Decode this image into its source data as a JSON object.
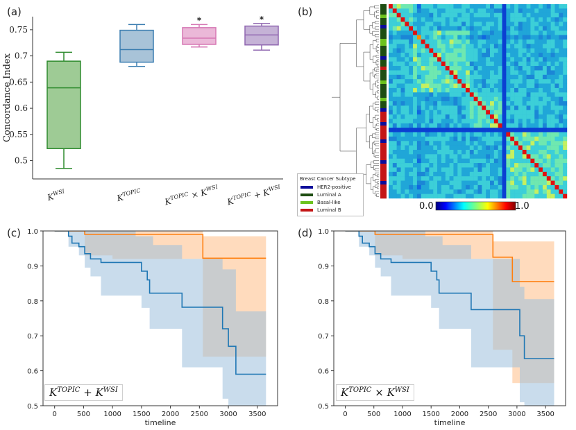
{
  "figure": {
    "panel_labels": [
      "(a)",
      "(b)",
      "(c)",
      "(d)"
    ]
  },
  "chart_data": [
    {
      "id": "a",
      "type": "boxplot",
      "title": "",
      "xlabel": "",
      "ylabel": "Concordance Index",
      "ylim": [
        0.465,
        0.775
      ],
      "yticks": [
        0.5,
        0.55,
        0.6,
        0.65,
        0.7,
        0.75
      ],
      "ytick_labels": [
        "0.5",
        "0.55",
        "0.6",
        "0.65",
        "0.7",
        "0.75"
      ],
      "grid": false,
      "series": [
        {
          "name": "K^WSI",
          "tex_base": "K",
          "tex_sup": "WSI",
          "tex_op": "",
          "tex_base2": "",
          "tex_sup2": "",
          "whisker_low": 0.485,
          "q1": 0.523,
          "median": 0.639,
          "q3": 0.69,
          "whisker_high": 0.707,
          "color": "#2e8b2e",
          "fill": "#9ecb95",
          "significant": false
        },
        {
          "name": "K^TOPIC",
          "tex_base": "K",
          "tex_sup": "TOPIC",
          "tex_op": "",
          "tex_base2": "",
          "tex_sup2": "",
          "whisker_low": 0.68,
          "q1": 0.688,
          "median": 0.712,
          "q3": 0.749,
          "whisker_high": 0.76,
          "color": "#3a7db0",
          "fill": "#a8c3d8",
          "significant": false
        },
        {
          "name": "K^TOPIC × K^WSI",
          "tex_base": "K",
          "tex_sup": "TOPIC",
          "tex_op": "×",
          "tex_base2": "K",
          "tex_sup2": "WSI",
          "whisker_low": 0.717,
          "q1": 0.722,
          "median": 0.734,
          "q3": 0.754,
          "whisker_high": 0.76,
          "color": "#d678b4",
          "fill": "#ebb8d8",
          "significant": true
        },
        {
          "name": "K^TOPIC + K^WSI",
          "tex_base": "K",
          "tex_sup": "TOPIC",
          "tex_op": "+",
          "tex_base2": "K",
          "tex_sup2": "WSI",
          "whisker_low": 0.711,
          "q1": 0.721,
          "median": 0.74,
          "q3": 0.757,
          "whisker_high": 0.762,
          "color": "#9067b0",
          "fill": "#c5b2d6",
          "significant": true
        }
      ],
      "significance_marker": "*"
    },
    {
      "id": "b",
      "type": "heatmap",
      "title": "",
      "colorbar": {
        "min_label": "0.0",
        "max_label": "1.0"
      },
      "legend": {
        "title": "Breast Cancer Subtype",
        "entries": [
          {
            "label": "HER2-positive",
            "color": "#0b0b9a"
          },
          {
            "label": "Luminal A",
            "color": "#1e4d12"
          },
          {
            "label": "Basal-like",
            "color": "#6cc21d"
          },
          {
            "label": "Luminal B",
            "color": "#c41616"
          }
        ]
      }
    },
    {
      "id": "c",
      "type": "line",
      "xlabel": "timeline",
      "ylabel": "",
      "xlim": [
        -200,
        3850
      ],
      "ylim": [
        0.5,
        1.0
      ],
      "xticks": [
        0,
        500,
        1000,
        1500,
        2000,
        2500,
        3000,
        3500
      ],
      "yticks": [
        0.5,
        0.6,
        0.7,
        0.8,
        0.9,
        1.0
      ],
      "ytick_labels": [
        "0.5",
        "0.6",
        "0.7",
        "0.8",
        "0.9",
        "1.0"
      ],
      "legend_text": {
        "base": "K",
        "sup": "TOPIC",
        "op": "+",
        "base2": "K",
        "sup2": "WSI"
      },
      "series": [
        {
          "name": "orange",
          "color": "#ff7f0e",
          "fill": "#ffbe86",
          "steps": [
            [
              0,
              1.0
            ],
            [
              520,
              1.0
            ],
            [
              520,
              0.99
            ],
            [
              2560,
              0.99
            ],
            [
              2560,
              0.922
            ],
            [
              3650,
              0.922
            ]
          ],
          "upper": [
            [
              520,
              1.0
            ],
            [
              2560,
              1.0
            ],
            [
              2560,
              0.985
            ],
            [
              3650,
              0.985
            ]
          ],
          "lower": [
            [
              520,
              0.93
            ],
            [
              1000,
              0.93
            ],
            [
              1000,
              0.92
            ],
            [
              2560,
              0.92
            ],
            [
              2560,
              0.64
            ],
            [
              3650,
              0.64
            ]
          ]
        },
        {
          "name": "blue",
          "color": "#1f77b4",
          "fill": "#9dbfdd",
          "steps": [
            [
              0,
              1.0
            ],
            [
              240,
              1.0
            ],
            [
              240,
              0.985
            ],
            [
              300,
              0.985
            ],
            [
              300,
              0.965
            ],
            [
              420,
              0.965
            ],
            [
              420,
              0.955
            ],
            [
              520,
              0.955
            ],
            [
              520,
              0.935
            ],
            [
              620,
              0.935
            ],
            [
              620,
              0.92
            ],
            [
              800,
              0.92
            ],
            [
              800,
              0.91
            ],
            [
              1500,
              0.91
            ],
            [
              1500,
              0.885
            ],
            [
              1600,
              0.885
            ],
            [
              1600,
              0.86
            ],
            [
              1640,
              0.86
            ],
            [
              1640,
              0.822
            ],
            [
              2200,
              0.822
            ],
            [
              2200,
              0.782
            ],
            [
              2900,
              0.782
            ],
            [
              2900,
              0.72
            ],
            [
              3000,
              0.72
            ],
            [
              3000,
              0.67
            ],
            [
              3130,
              0.67
            ],
            [
              3130,
              0.59
            ],
            [
              3650,
              0.59
            ]
          ],
          "upper": [
            [
              240,
              1.0
            ],
            [
              1400,
              1.0
            ],
            [
              1400,
              0.985
            ],
            [
              1700,
              0.985
            ],
            [
              1700,
              0.96
            ],
            [
              2200,
              0.96
            ],
            [
              2200,
              0.92
            ],
            [
              2900,
              0.92
            ],
            [
              2900,
              0.89
            ],
            [
              3130,
              0.89
            ],
            [
              3130,
              0.77
            ],
            [
              3650,
              0.77
            ]
          ],
          "lower": [
            [
              240,
              0.955
            ],
            [
              420,
              0.955
            ],
            [
              420,
              0.93
            ],
            [
              520,
              0.93
            ],
            [
              520,
              0.895
            ],
            [
              620,
              0.895
            ],
            [
              620,
              0.87
            ],
            [
              800,
              0.87
            ],
            [
              800,
              0.815
            ],
            [
              1500,
              0.815
            ],
            [
              1500,
              0.78
            ],
            [
              1640,
              0.78
            ],
            [
              1640,
              0.72
            ],
            [
              2200,
              0.72
            ],
            [
              2200,
              0.61
            ],
            [
              2900,
              0.61
            ],
            [
              2900,
              0.52
            ],
            [
              3000,
              0.52
            ],
            [
              3000,
              0.5
            ],
            [
              3650,
              0.5
            ]
          ]
        }
      ]
    },
    {
      "id": "d",
      "type": "line",
      "xlabel": "timeline",
      "ylabel": "",
      "xlim": [
        -200,
        3850
      ],
      "ylim": [
        0.5,
        1.0
      ],
      "xticks": [
        0,
        500,
        1000,
        1500,
        2000,
        2500,
        3000,
        3500
      ],
      "yticks": [
        0.5,
        0.6,
        0.7,
        0.8,
        0.9,
        1.0
      ],
      "ytick_labels": [
        "0.5",
        "0.6",
        "0.7",
        "0.8",
        "0.9",
        "1.0"
      ],
      "legend_text": {
        "base": "K",
        "sup": "TOPIC",
        "op": "×",
        "base2": "K",
        "sup2": "WSI"
      },
      "series": [
        {
          "name": "orange",
          "color": "#ff7f0e",
          "fill": "#ffbe86",
          "steps": [
            [
              0,
              1.0
            ],
            [
              520,
              1.0
            ],
            [
              520,
              0.99
            ],
            [
              2580,
              0.99
            ],
            [
              2580,
              0.925
            ],
            [
              2920,
              0.925
            ],
            [
              2920,
              0.855
            ],
            [
              3650,
              0.855
            ]
          ],
          "upper": [
            [
              520,
              1.0
            ],
            [
              2580,
              1.0
            ],
            [
              2580,
              0.97
            ],
            [
              3650,
              0.97
            ]
          ],
          "lower": [
            [
              520,
              0.93
            ],
            [
              1000,
              0.93
            ],
            [
              1000,
              0.92
            ],
            [
              2580,
              0.92
            ],
            [
              2580,
              0.66
            ],
            [
              2920,
              0.66
            ],
            [
              2920,
              0.565
            ],
            [
              3650,
              0.565
            ]
          ]
        },
        {
          "name": "blue",
          "color": "#1f77b4",
          "fill": "#9dbfdd",
          "steps": [
            [
              0,
              1.0
            ],
            [
              240,
              1.0
            ],
            [
              240,
              0.985
            ],
            [
              300,
              0.985
            ],
            [
              300,
              0.965
            ],
            [
              420,
              0.965
            ],
            [
              420,
              0.955
            ],
            [
              520,
              0.955
            ],
            [
              520,
              0.935
            ],
            [
              620,
              0.935
            ],
            [
              620,
              0.92
            ],
            [
              800,
              0.92
            ],
            [
              800,
              0.91
            ],
            [
              1500,
              0.91
            ],
            [
              1500,
              0.885
            ],
            [
              1600,
              0.885
            ],
            [
              1600,
              0.86
            ],
            [
              1640,
              0.86
            ],
            [
              1640,
              0.822
            ],
            [
              2200,
              0.822
            ],
            [
              2200,
              0.775
            ],
            [
              3050,
              0.775
            ],
            [
              3050,
              0.7
            ],
            [
              3130,
              0.7
            ],
            [
              3130,
              0.635
            ],
            [
              3650,
              0.635
            ]
          ],
          "upper": [
            [
              240,
              1.0
            ],
            [
              1400,
              1.0
            ],
            [
              1400,
              0.985
            ],
            [
              1700,
              0.985
            ],
            [
              1700,
              0.96
            ],
            [
              2200,
              0.96
            ],
            [
              2200,
              0.92
            ],
            [
              3050,
              0.92
            ],
            [
              3050,
              0.84
            ],
            [
              3130,
              0.84
            ],
            [
              3130,
              0.805
            ],
            [
              3650,
              0.805
            ]
          ],
          "lower": [
            [
              240,
              0.955
            ],
            [
              420,
              0.955
            ],
            [
              420,
              0.93
            ],
            [
              520,
              0.93
            ],
            [
              520,
              0.895
            ],
            [
              620,
              0.895
            ],
            [
              620,
              0.87
            ],
            [
              800,
              0.87
            ],
            [
              800,
              0.815
            ],
            [
              1500,
              0.815
            ],
            [
              1500,
              0.78
            ],
            [
              1640,
              0.78
            ],
            [
              1640,
              0.72
            ],
            [
              2200,
              0.72
            ],
            [
              2200,
              0.61
            ],
            [
              3050,
              0.61
            ],
            [
              3050,
              0.51
            ],
            [
              3130,
              0.51
            ],
            [
              3130,
              0.5
            ],
            [
              3650,
              0.5
            ]
          ]
        }
      ]
    }
  ]
}
